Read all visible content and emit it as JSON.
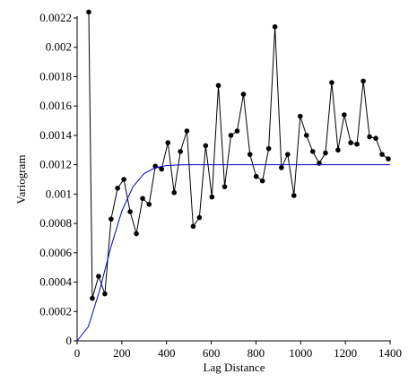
{
  "chart_data": {
    "type": "line",
    "xlabel": "Lag Distance",
    "ylabel": "Variogram",
    "xlim": [
      0,
      1400
    ],
    "xticks": [
      0,
      200,
      400,
      600,
      800,
      1000,
      1200,
      1400
    ],
    "ylim": [
      0,
      0.0022
    ],
    "yticks": [
      0,
      0.0002,
      0.0004,
      0.0006,
      0.0008,
      0.001,
      0.0012,
      0.0014,
      0.0016,
      0.0018,
      0.002,
      0.0022
    ],
    "series": [
      {
        "color": "#000000",
        "marker": true,
        "x": [
          52,
          68,
          96,
          124,
          152,
          181,
          209,
          237,
          265,
          293,
          322,
          350,
          378,
          406,
          434,
          462,
          491,
          519,
          547,
          575,
          603,
          632,
          660,
          688,
          716,
          744,
          773,
          801,
          829,
          857,
          885,
          914,
          942,
          970,
          998,
          1026,
          1054,
          1083,
          1111,
          1139,
          1167,
          1195,
          1224,
          1252,
          1280,
          1308,
          1336,
          1364,
          1392
        ],
        "values": [
          0.00224,
          0.00029,
          0.00044,
          0.00032,
          0.00083,
          0.00104,
          0.0011,
          0.00088,
          0.00073,
          0.00097,
          0.00093,
          0.00119,
          0.00117,
          0.00135,
          0.00101,
          0.00129,
          0.00143,
          0.00078,
          0.00084,
          0.00133,
          0.00098,
          0.00174,
          0.00105,
          0.0014,
          0.00143,
          0.00168,
          0.00127,
          0.00112,
          0.00109,
          0.00131,
          0.00214,
          0.00118,
          0.00127,
          0.00099,
          0.00153,
          0.0014,
          0.00129,
          0.00121,
          0.00128,
          0.00176,
          0.0013,
          0.00154,
          0.00135,
          0.00134,
          0.00177,
          0.00139,
          0.00138,
          0.00127,
          0.00124
        ]
      },
      {
        "color": "#0000cc",
        "marker": false,
        "x": [
          0,
          50,
          100,
          150,
          200,
          250,
          300,
          350,
          400,
          450,
          500,
          1400
        ],
        "values": [
          0,
          9.6e-05,
          0.00034,
          0.000633,
          0.000884,
          0.00105,
          0.00114,
          0.00118,
          0.001194,
          0.0011986,
          0.0012,
          0.0012
        ]
      }
    ]
  }
}
